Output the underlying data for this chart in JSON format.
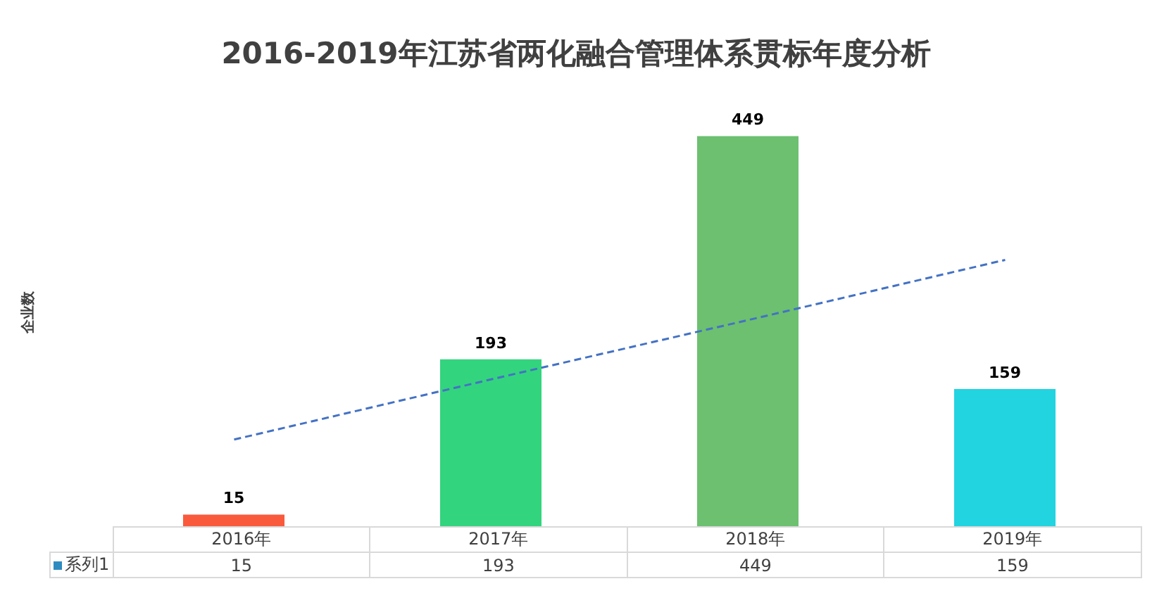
{
  "chart_data": {
    "type": "bar",
    "title": "2016-2019年江苏省两化融合管理体系贯标年度分析",
    "annotations": [
      "企业数"
    ],
    "categories": [
      "2016年",
      "2017年",
      "2018年",
      "2019年"
    ],
    "series": [
      {
        "name": "系列1",
        "color": "#2e8bc0",
        "colors": [
          "#fa5a3c",
          "#33d47e",
          "#6cc070",
          "#22d3e0"
        ],
        "values": [
          15,
          193,
          449,
          159
        ],
        "value_labels": [
          "15",
          "193",
          "449",
          "159"
        ]
      },
      {
        "type": "line",
        "x": [
          "2016年",
          "2017年",
          "2018年",
          "2019年"
        ],
        "color": "#4472c4",
        "line_style": "dashed",
        "marker": "none",
        "values": [
          101,
          170,
          238,
          307
        ]
      }
    ],
    "legend": "bottom"
  }
}
